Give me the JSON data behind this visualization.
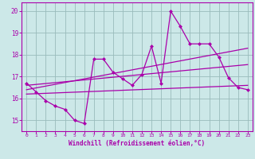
{
  "xlabel": "Windchill (Refroidissement éolien,°C)",
  "bg_color": "#cce8e8",
  "line_color": "#aa00aa",
  "grid_color": "#99bbbb",
  "xlim": [
    -0.5,
    23.5
  ],
  "ylim": [
    14.5,
    20.4
  ],
  "yticks": [
    15,
    16,
    17,
    18,
    19,
    20
  ],
  "xticks": [
    0,
    1,
    2,
    3,
    4,
    5,
    6,
    7,
    8,
    9,
    10,
    11,
    12,
    13,
    14,
    15,
    16,
    17,
    18,
    19,
    20,
    21,
    22,
    23
  ],
  "series1_x": [
    0,
    1,
    2,
    3,
    4,
    5,
    6,
    7,
    8,
    9,
    10,
    11,
    12,
    13,
    14,
    15,
    16,
    17,
    18,
    19,
    20,
    21,
    22,
    23
  ],
  "series1_y": [
    16.7,
    16.3,
    15.9,
    15.65,
    15.5,
    15.0,
    14.85,
    17.8,
    17.8,
    17.2,
    16.9,
    16.6,
    17.1,
    18.4,
    16.7,
    20.0,
    19.3,
    18.5,
    18.5,
    18.5,
    17.9,
    16.95,
    16.5,
    16.4
  ],
  "series2_x": [
    0,
    23
  ],
  "series2_y": [
    16.6,
    17.55
  ],
  "series3_x": [
    0,
    23
  ],
  "series3_y": [
    16.4,
    18.3
  ],
  "series4_x": [
    0,
    23
  ],
  "series4_y": [
    16.2,
    16.6
  ]
}
